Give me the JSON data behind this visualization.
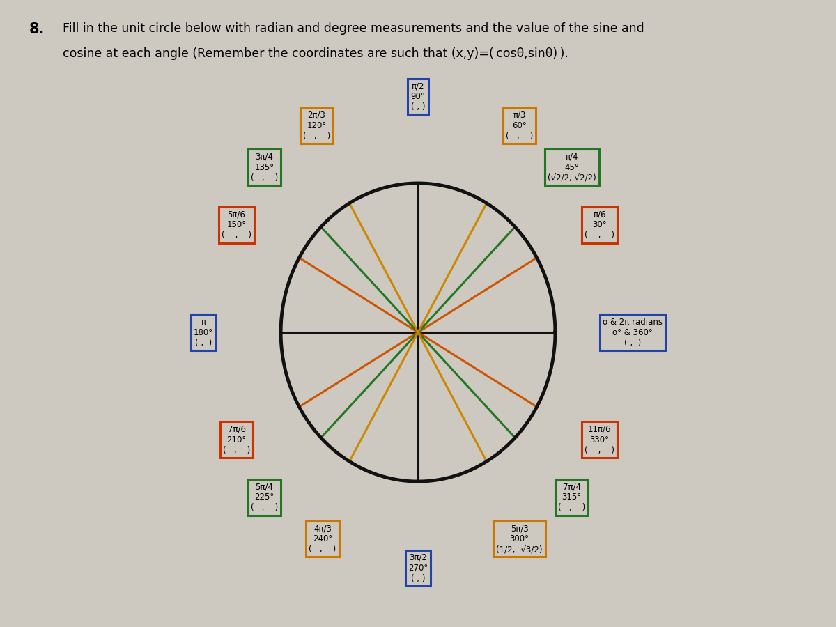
{
  "background_color": "#cdc8c0",
  "circle_color": "#111111",
  "axes_color": "#111111",
  "angles": [
    {
      "deg": 0,
      "rad_label": "o & 2π radians\no° & 360°",
      "coord_label": "( ,  )",
      "box_color": "#2244aa",
      "line_color": "#111111",
      "ox": 0.52,
      "oy": 0.0
    },
    {
      "deg": 30,
      "rad_label": "π/6\n30°",
      "coord_label": "(    ,    )",
      "box_color": "#cc3300",
      "line_color": "#cc5500",
      "ox": 0.42,
      "oy": 0.22
    },
    {
      "deg": 45,
      "rad_label": "π/4\n45°",
      "coord_label": "(√2/2, √2/2)",
      "box_color": "#227722",
      "line_color": "#227722",
      "ox": 0.38,
      "oy": 0.4
    },
    {
      "deg": 60,
      "rad_label": "π/3\n60°",
      "coord_label": "(   ,    )",
      "box_color": "#cc7700",
      "line_color": "#cc8800",
      "ox": 0.22,
      "oy": 0.52
    },
    {
      "deg": 90,
      "rad_label": "π/2\n90°",
      "coord_label": "( , )",
      "box_color": "#2244aa",
      "line_color": "#111111",
      "ox": 0.0,
      "oy": 0.58
    },
    {
      "deg": 120,
      "rad_label": "2π/3\n120°",
      "coord_label": "(   ,    )",
      "box_color": "#cc7700",
      "line_color": "#cc8800",
      "ox": -0.22,
      "oy": 0.52
    },
    {
      "deg": 135,
      "rad_label": "3π/4\n135°",
      "coord_label": "(   ,    )",
      "box_color": "#227722",
      "line_color": "#227722",
      "ox": -0.38,
      "oy": 0.4
    },
    {
      "deg": 150,
      "rad_label": "5π/6\n150°",
      "coord_label": "(    ,    )",
      "box_color": "#cc3300",
      "line_color": "#cc5500",
      "ox": -0.42,
      "oy": 0.22
    },
    {
      "deg": 180,
      "rad_label": "π\n180°",
      "coord_label": "( ,  )",
      "box_color": "#2244aa",
      "line_color": "#111111",
      "ox": -0.52,
      "oy": 0.0
    },
    {
      "deg": 210,
      "rad_label": "7π/6\n210°",
      "coord_label": "(   ,    )",
      "box_color": "#cc3300",
      "line_color": "#cc5500",
      "ox": -0.42,
      "oy": -0.22
    },
    {
      "deg": 225,
      "rad_label": "5π/4\n225°",
      "coord_label": "(   ,    )",
      "box_color": "#227722",
      "line_color": "#227722",
      "ox": -0.38,
      "oy": -0.4
    },
    {
      "deg": 240,
      "rad_label": "4π/3\n240°",
      "coord_label": "(   ,    )",
      "box_color": "#cc7700",
      "line_color": "#cc8800",
      "ox": -0.18,
      "oy": -0.52
    },
    {
      "deg": 270,
      "rad_label": "3π/2\n270°",
      "coord_label": "( , )",
      "box_color": "#2244aa",
      "line_color": "#111111",
      "ox": 0.0,
      "oy": -0.58
    },
    {
      "deg": 300,
      "rad_label": "5π/3\n300°",
      "coord_label": "(1/2, -√3/2)",
      "box_color": "#cc7700",
      "line_color": "#cc8800",
      "ox": 0.22,
      "oy": -0.52
    },
    {
      "deg": 315,
      "rad_label": "7π/4\n315°",
      "coord_label": "(   ,    )",
      "box_color": "#227722",
      "line_color": "#227722",
      "ox": 0.38,
      "oy": -0.4
    },
    {
      "deg": 330,
      "rad_label": "11π/6\n330°",
      "coord_label": "(    ,    )",
      "box_color": "#cc3300",
      "line_color": "#cc5500",
      "ox": 0.42,
      "oy": -0.22
    }
  ],
  "line_groups": [
    {
      "angles": [
        0,
        180
      ],
      "color": "#111111"
    },
    {
      "angles": [
        90,
        270
      ],
      "color": "#111111"
    },
    {
      "angles": [
        30,
        210
      ],
      "color": "#cc5500"
    },
    {
      "angles": [
        150,
        330
      ],
      "color": "#cc5500"
    },
    {
      "angles": [
        45,
        225
      ],
      "color": "#227722"
    },
    {
      "angles": [
        135,
        315
      ],
      "color": "#227722"
    },
    {
      "angles": [
        60,
        240
      ],
      "color": "#cc8800"
    },
    {
      "angles": [
        120,
        300
      ],
      "color": "#cc8800"
    }
  ],
  "fig_width": 12.0,
  "fig_height": 9.0,
  "dpi": 100
}
